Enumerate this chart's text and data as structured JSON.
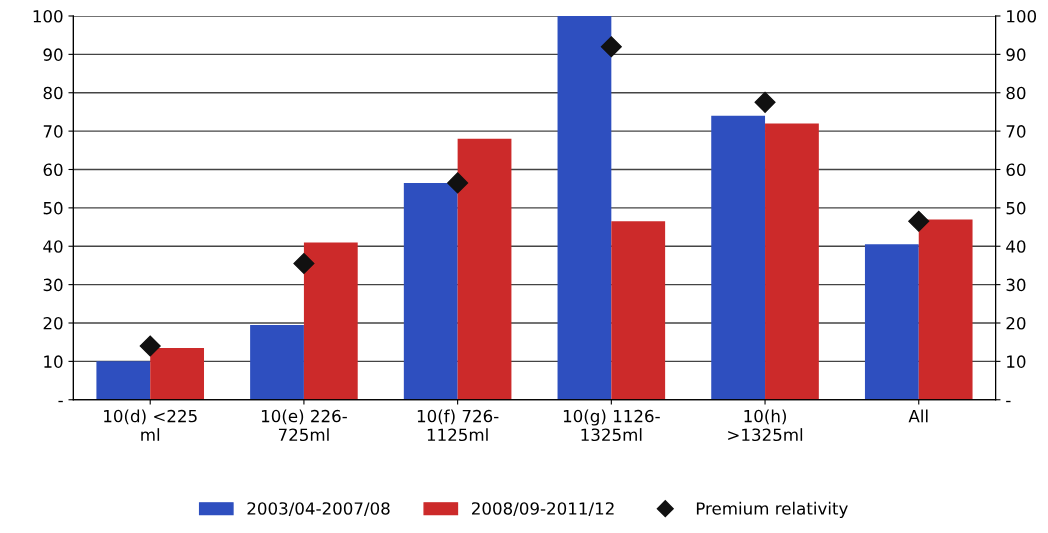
{
  "chart_data": {
    "type": "bar",
    "categories": [
      "10(d) <225\nml",
      "10(e) 226-\n725ml",
      "10(f) 726-\n1125ml",
      "10(g) 1126-\n1325ml",
      "10(h)\n>1325ml",
      "All"
    ],
    "series": [
      {
        "name": "2003/04-2007/08",
        "color": "#2e4fbf",
        "values": [
          10,
          19.5,
          56.5,
          100,
          74,
          40.5
        ]
      },
      {
        "name": "2008/09-2011/12",
        "color": "#cc2a2a",
        "values": [
          13.5,
          41,
          68,
          46.5,
          72,
          47
        ]
      },
      {
        "name": "Premium relativity",
        "type": "scatter",
        "color": "#111111",
        "marker": "diamond",
        "values": [
          14,
          35.5,
          56.5,
          92,
          77.5,
          46.5
        ]
      }
    ],
    "ylim": [
      0,
      100
    ],
    "yticks": [
      {
        "value": 0,
        "label": "-"
      },
      10,
      20,
      30,
      40,
      50,
      60,
      70,
      80,
      90,
      100
    ],
    "y2lim": [
      0,
      100
    ],
    "y2ticks": [
      {
        "value": 0,
        "label": "-"
      },
      10,
      20,
      30,
      40,
      50,
      60,
      70,
      80,
      90,
      100
    ],
    "grid": "y",
    "legend": "bottom"
  }
}
